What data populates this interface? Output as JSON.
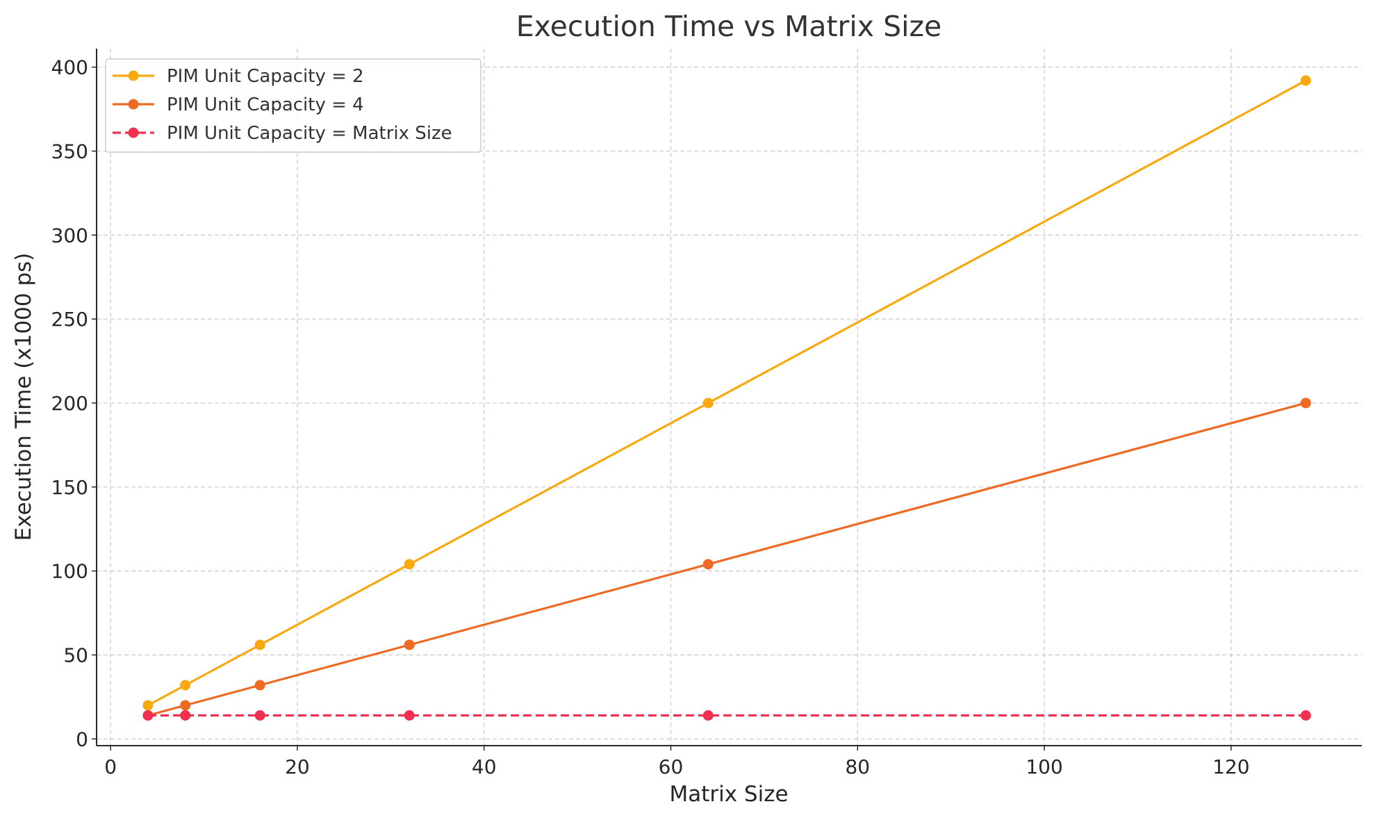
{
  "chart_data": {
    "type": "line",
    "title": "Execution Time vs Matrix Size",
    "xlabel": "Matrix Size",
    "ylabel": "Execution Time (x1000 ps)",
    "xlim": [
      -1.5,
      134
    ],
    "ylim": [
      -4,
      411
    ],
    "xticks": [
      0,
      20,
      40,
      60,
      80,
      100,
      120
    ],
    "yticks": [
      0,
      50,
      100,
      150,
      200,
      250,
      300,
      350,
      400
    ],
    "grid": true,
    "legend_position": "top-left",
    "x": [
      4,
      8,
      16,
      32,
      64,
      128
    ],
    "series": [
      {
        "name": "PIM Unit Capacity = 2",
        "values": [
          20,
          32,
          56,
          104,
          200,
          392
        ],
        "color": "#f8a90f",
        "dashed": false
      },
      {
        "name": "PIM Unit Capacity = 4",
        "values": [
          14,
          20,
          32,
          56,
          104,
          200
        ],
        "color": "#ee6a24",
        "dashed": false
      },
      {
        "name": "PIM Unit Capacity = Matrix Size",
        "values": [
          14,
          14,
          14,
          14,
          14,
          14
        ],
        "color": "#f0304f",
        "dashed": true
      }
    ]
  }
}
